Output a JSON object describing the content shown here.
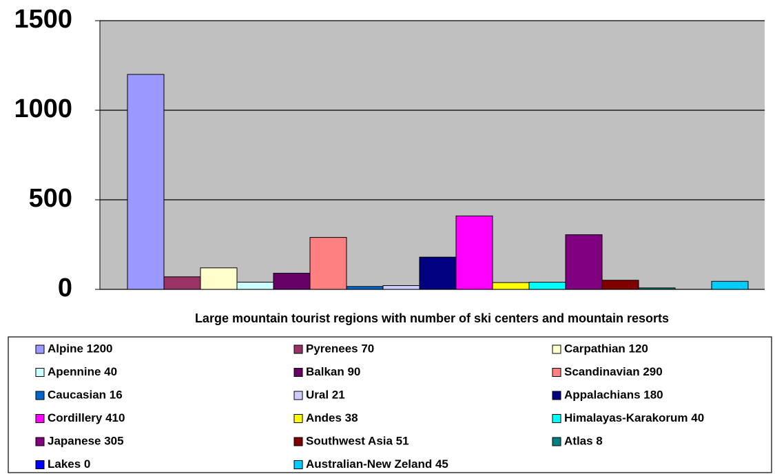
{
  "chart_data": {
    "type": "bar",
    "x_label": "Large mountain tourist regions with number of ski centers and mountain resorts",
    "categories": [
      null
    ],
    "series": [
      {
        "name": "Alpine 1200",
        "color": "#9999ff",
        "values": [
          1200
        ]
      },
      {
        "name": "Pyrenees 70",
        "color": "#993366",
        "values": [
          70
        ]
      },
      {
        "name": "Carpathian 120",
        "color": "#ffffcc",
        "values": [
          120
        ]
      },
      {
        "name": "Apennine 40",
        "color": "#ccffff",
        "values": [
          40
        ]
      },
      {
        "name": "Balkan 90",
        "color": "#660066",
        "values": [
          90
        ]
      },
      {
        "name": "Scandinavian 290",
        "color": "#ff8080",
        "values": [
          290
        ]
      },
      {
        "name": "Caucasian 16",
        "color": "#0066cc",
        "values": [
          16
        ]
      },
      {
        "name": "Ural 21",
        "color": "#ccccff",
        "values": [
          21
        ]
      },
      {
        "name": "Appalachians 180",
        "color": "#000080",
        "values": [
          180
        ]
      },
      {
        "name": "Cordillery 410",
        "color": "#ff00ff",
        "values": [
          410
        ]
      },
      {
        "name": "Andes 38",
        "color": "#ffff00",
        "values": [
          38
        ]
      },
      {
        "name": "Himalayas-Karakorum 40",
        "color": "#00ffff",
        "values": [
          40
        ]
      },
      {
        "name": "Japanese 305",
        "color": "#800080",
        "values": [
          305
        ]
      },
      {
        "name": "Southwest Asia 51",
        "color": "#800000",
        "values": [
          51
        ]
      },
      {
        "name": "Atlas 8",
        "color": "#008080",
        "values": [
          8
        ]
      },
      {
        "name": "Lakes 0",
        "color": "#0000ff",
        "values": [
          0
        ]
      },
      {
        "name": "Australian-New Zeland 45",
        "color": "#00ccff",
        "values": [
          45
        ]
      }
    ],
    "ylim": [
      0,
      1500
    ],
    "yticks": [
      0,
      500,
      1000,
      1500
    ],
    "grid": true,
    "plot_background": "#c0c0c0",
    "legend": "bottom"
  }
}
